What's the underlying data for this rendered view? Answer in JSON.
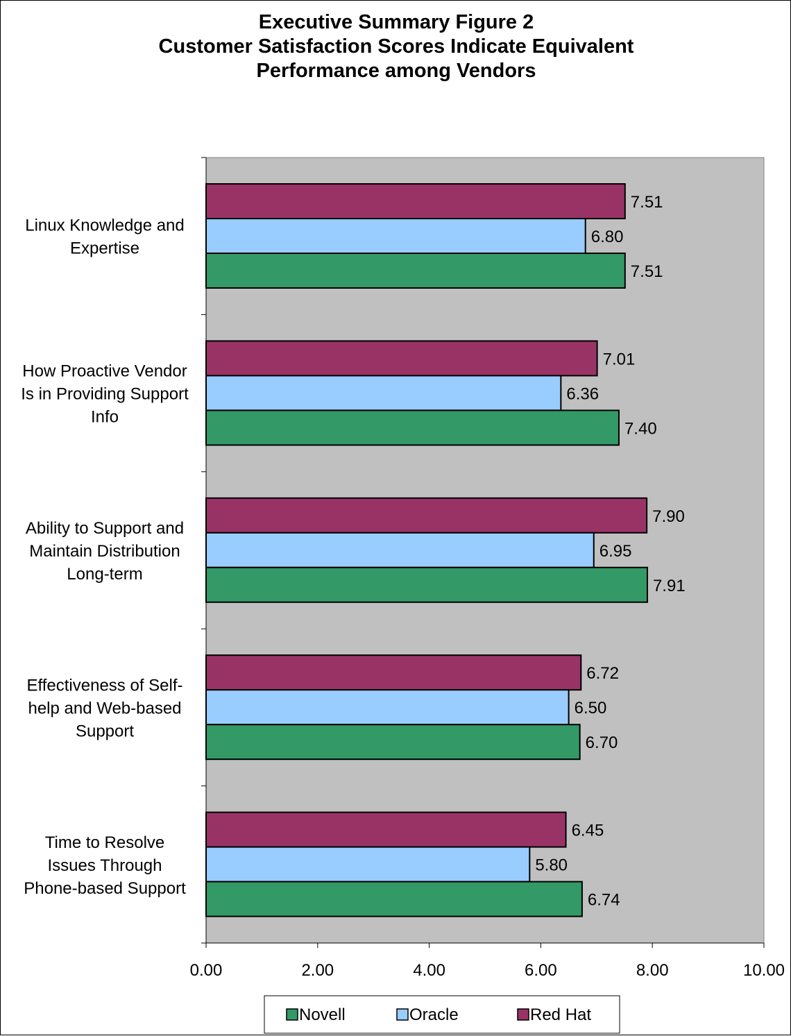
{
  "chart_data": {
    "type": "bar",
    "orientation": "horizontal",
    "title": [
      "Executive Summary Figure 2",
      "Customer Satisfaction Scores Indicate Equivalent",
      "Performance among Vendors"
    ],
    "categories": [
      [
        "Linux Knowledge and",
        "Expertise"
      ],
      [
        "How Proactive Vendor",
        "Is in Providing Support",
        "Info"
      ],
      [
        "Ability to Support and",
        "Maintain Distribution",
        "Long-term"
      ],
      [
        "Effectiveness of Self-",
        "help and Web-based",
        "Support"
      ],
      [
        "Time to Resolve",
        "Issues Through",
        "Phone-based Support"
      ]
    ],
    "series": [
      {
        "name": "Red Hat",
        "color": "#993366",
        "values": [
          7.51,
          7.01,
          7.9,
          6.72,
          6.45
        ]
      },
      {
        "name": "Oracle",
        "color": "#99CCFF",
        "values": [
          6.8,
          6.36,
          6.95,
          6.5,
          5.8
        ]
      },
      {
        "name": "Novell",
        "color": "#339966",
        "values": [
          7.51,
          7.4,
          7.91,
          6.7,
          6.74
        ]
      }
    ],
    "value_labels": [
      [
        "7.51",
        "7.01",
        "7.90",
        "6.72",
        "6.45"
      ],
      [
        "6.80",
        "6.36",
        "6.95",
        "6.50",
        "5.80"
      ],
      [
        "7.51",
        "7.40",
        "7.91",
        "6.70",
        "6.74"
      ]
    ],
    "xlim": [
      0,
      10
    ],
    "xticks": [
      "0.00",
      "2.00",
      "4.00",
      "6.00",
      "8.00",
      "10.00"
    ],
    "xtick_values": [
      0,
      2,
      4,
      6,
      8,
      10
    ],
    "legend": {
      "placement": "bottom",
      "order": [
        "Novell",
        "Oracle",
        "Red Hat"
      ]
    },
    "plot_background": "#C0C0C0",
    "grid": false
  }
}
